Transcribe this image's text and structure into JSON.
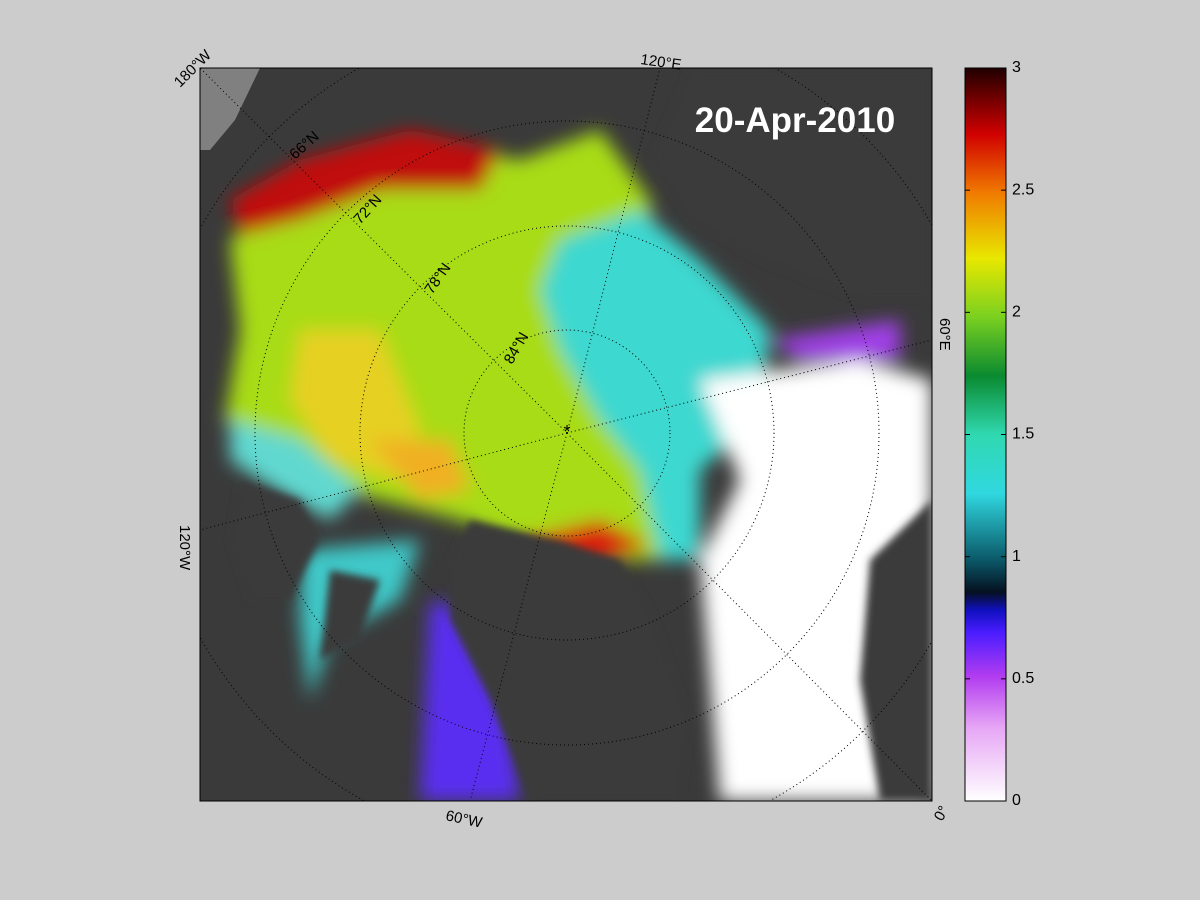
{
  "map": {
    "date": "20-Apr-2010",
    "longitude_labels": [
      "180°W",
      "120°E",
      "60°E",
      "0°",
      "60°W",
      "120°W"
    ],
    "latitude_labels": [
      "66°N",
      "72°N",
      "78°N",
      "84°N"
    ]
  },
  "colorbar": {
    "range": [
      0,
      3
    ],
    "ticks": [
      0,
      0.5,
      1,
      1.5,
      2,
      2.5,
      3
    ]
  }
}
